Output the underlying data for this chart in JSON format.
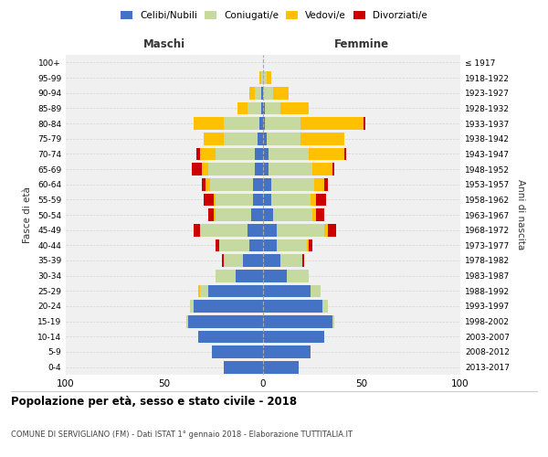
{
  "age_groups": [
    "0-4",
    "5-9",
    "10-14",
    "15-19",
    "20-24",
    "25-29",
    "30-34",
    "35-39",
    "40-44",
    "45-49",
    "50-54",
    "55-59",
    "60-64",
    "65-69",
    "70-74",
    "75-79",
    "80-84",
    "85-89",
    "90-94",
    "95-99",
    "100+"
  ],
  "birth_years": [
    "2013-2017",
    "2008-2012",
    "2003-2007",
    "1998-2002",
    "1993-1997",
    "1988-1992",
    "1983-1987",
    "1978-1982",
    "1973-1977",
    "1968-1972",
    "1963-1967",
    "1958-1962",
    "1953-1957",
    "1948-1952",
    "1943-1947",
    "1938-1942",
    "1933-1937",
    "1928-1932",
    "1923-1927",
    "1918-1922",
    "≤ 1917"
  ],
  "colors": {
    "celibe": "#4472C4",
    "coniugato": "#c5d9a0",
    "vedovo": "#ffc000",
    "divorziato": "#cc0000"
  },
  "males": {
    "celibe": [
      20,
      26,
      33,
      38,
      35,
      28,
      14,
      10,
      7,
      8,
      6,
      5,
      5,
      4,
      4,
      3,
      2,
      1,
      1,
      0,
      0
    ],
    "coniugato": [
      0,
      0,
      0,
      1,
      2,
      4,
      10,
      10,
      15,
      24,
      18,
      19,
      22,
      24,
      20,
      17,
      18,
      7,
      3,
      1,
      0
    ],
    "vedovo": [
      0,
      0,
      0,
      0,
      0,
      1,
      0,
      0,
      0,
      0,
      1,
      1,
      2,
      3,
      8,
      10,
      15,
      5,
      3,
      1,
      0
    ],
    "divorziato": [
      0,
      0,
      0,
      0,
      0,
      0,
      0,
      1,
      2,
      3,
      3,
      5,
      2,
      5,
      2,
      0,
      0,
      0,
      0,
      0,
      0
    ]
  },
  "females": {
    "nubile": [
      18,
      24,
      31,
      35,
      30,
      24,
      12,
      9,
      7,
      7,
      5,
      4,
      4,
      3,
      3,
      2,
      1,
      1,
      0,
      0,
      0
    ],
    "coniugata": [
      0,
      0,
      0,
      1,
      3,
      5,
      11,
      11,
      15,
      24,
      20,
      20,
      22,
      22,
      20,
      17,
      18,
      8,
      5,
      2,
      0
    ],
    "vedova": [
      0,
      0,
      0,
      0,
      0,
      0,
      0,
      0,
      1,
      2,
      2,
      3,
      5,
      10,
      18,
      22,
      32,
      14,
      8,
      2,
      0
    ],
    "divorziata": [
      0,
      0,
      0,
      0,
      0,
      0,
      0,
      1,
      2,
      4,
      4,
      5,
      2,
      1,
      1,
      0,
      1,
      0,
      0,
      0,
      0
    ]
  },
  "xlim": 100,
  "title": "Popolazione per età, sesso e stato civile - 2018",
  "subtitle": "COMUNE DI SERVIGLIANO (FM) - Dati ISTAT 1° gennaio 2018 - Elaborazione TUTTITALIA.IT",
  "ylabel": "Fasce di età",
  "ylabel_right": "Anni di nascita",
  "xlabel_maschi": "Maschi",
  "xlabel_femmine": "Femmine",
  "bg_color": "#f0f0f0"
}
